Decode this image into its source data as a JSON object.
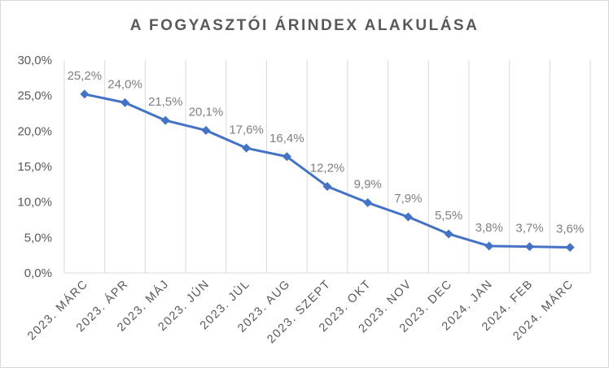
{
  "chart_data": {
    "type": "line",
    "title": "A FOGYASZTÓI ÁRINDEX ALAKULÁSA",
    "categories": [
      "2023. MÁRC",
      "2023. ÁPR",
      "2023. MÁJ",
      "2023. JÚN",
      "2023. JÚL",
      "2023. AUG",
      "2023. SZEPT",
      "2023. OKT",
      "2023. NOV",
      "2023. DEC",
      "2024. JAN",
      "2024. FEB",
      "2024. MÁRC"
    ],
    "values": [
      25.2,
      24.0,
      21.5,
      20.1,
      17.6,
      16.4,
      12.2,
      9.9,
      7.9,
      5.5,
      3.8,
      3.7,
      3.6
    ],
    "data_labels": [
      "25,2%",
      "24,0%",
      "21,5%",
      "20,1%",
      "17,6%",
      "16,4%",
      "12,2%",
      "9,9%",
      "7,9%",
      "5,5%",
      "3,8%",
      "3,7%",
      "3,6%"
    ],
    "y_ticks": [
      0,
      5,
      10,
      15,
      20,
      25,
      30
    ],
    "y_tick_labels": [
      "0,0%",
      "5,0%",
      "10,0%",
      "15,0%",
      "20,0%",
      "25,0%",
      "30,0%"
    ],
    "ylim": [
      0,
      30
    ],
    "grid": "vertical",
    "legend": "none",
    "line_color": "#4472c4",
    "grid_color": "#d9d9d9",
    "text_color": "#595959"
  }
}
